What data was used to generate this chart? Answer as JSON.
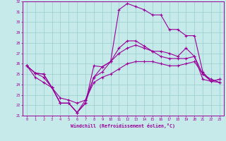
{
  "xlabel": "Windchill (Refroidissement éolien,°C)",
  "xlim": [
    -0.5,
    23.5
  ],
  "ylim": [
    21,
    32
  ],
  "yticks": [
    21,
    22,
    23,
    24,
    25,
    26,
    27,
    28,
    29,
    30,
    31,
    32
  ],
  "xticks": [
    0,
    1,
    2,
    3,
    4,
    5,
    6,
    7,
    8,
    9,
    10,
    11,
    12,
    13,
    14,
    15,
    16,
    17,
    18,
    19,
    20,
    21,
    22,
    23
  ],
  "bg_color": "#c6eaea",
  "line_color": "#990099",
  "grid_color": "#99cccc",
  "lines": [
    [
      25.8,
      25.1,
      25.0,
      23.7,
      22.2,
      22.2,
      21.3,
      22.2,
      25.8,
      25.7,
      26.2,
      31.2,
      31.8,
      31.5,
      31.2,
      30.7,
      30.7,
      29.3,
      29.3,
      28.7,
      28.7,
      25.2,
      24.3,
      24.5
    ],
    [
      25.8,
      25.1,
      25.0,
      23.7,
      22.2,
      22.2,
      21.3,
      22.2,
      24.7,
      25.7,
      26.2,
      27.5,
      28.2,
      28.2,
      27.7,
      27.2,
      27.2,
      27.0,
      26.7,
      27.5,
      26.7,
      24.5,
      24.3,
      24.5
    ],
    [
      25.8,
      25.1,
      24.7,
      23.7,
      22.2,
      22.2,
      21.3,
      22.5,
      24.7,
      25.2,
      26.2,
      27.0,
      27.5,
      27.8,
      27.5,
      27.2,
      26.7,
      26.5,
      26.5,
      26.5,
      26.7,
      25.0,
      24.3,
      24.2
    ],
    [
      25.8,
      24.7,
      24.2,
      23.7,
      22.7,
      22.5,
      22.2,
      22.5,
      24.2,
      24.7,
      25.0,
      25.5,
      26.0,
      26.2,
      26.2,
      26.2,
      26.0,
      25.8,
      25.8,
      26.0,
      26.2,
      25.0,
      24.5,
      24.2
    ]
  ]
}
